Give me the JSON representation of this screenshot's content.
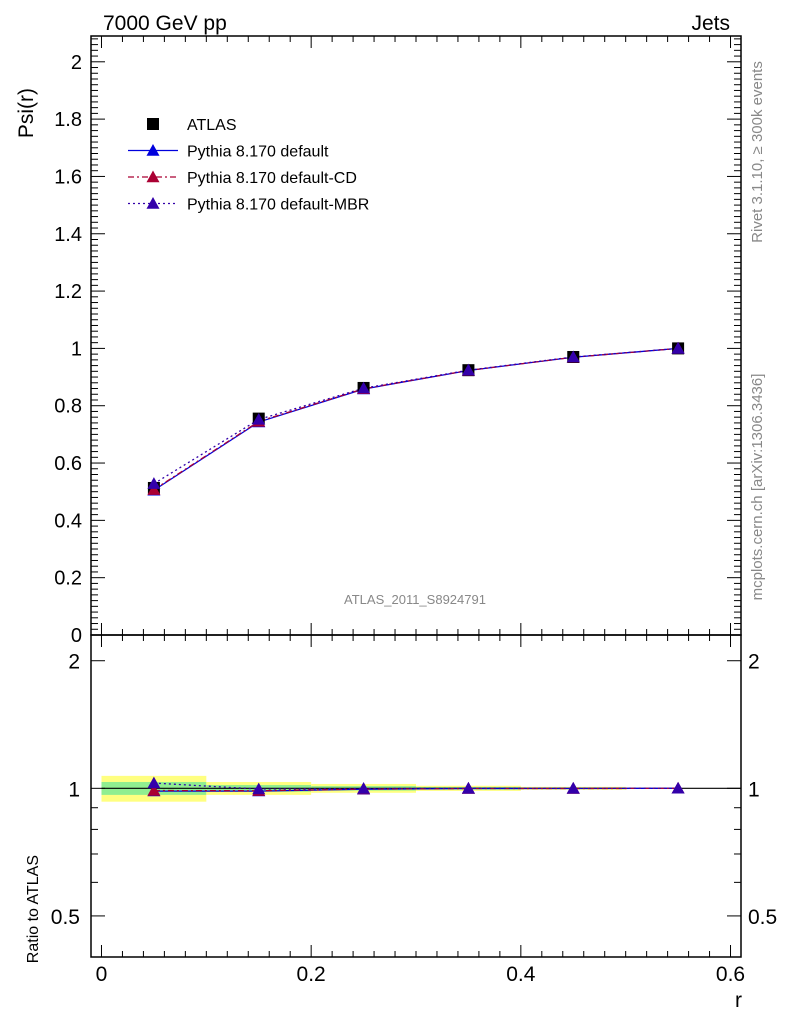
{
  "header": {
    "left_label": "7000 GeV pp",
    "right_label": "Jets",
    "watermark": "ATLAS_2011_S8924791",
    "side_text_top": "Rivet 3.1.10, ≥ 300k events",
    "side_text_bottom": "mcplots.cern.ch [arXiv:1306.3436]"
  },
  "chart_data": [
    {
      "type": "line",
      "ylabel": "Psi(r)",
      "xlabel": "",
      "xlim": [
        -0.01,
        0.61
      ],
      "ylim": [
        0,
        2.09
      ],
      "grid": false,
      "legend_placement": "top-left",
      "x_ticks": [
        "0",
        "0.2",
        "0.4",
        "0.6"
      ],
      "y_ticks": [
        "0",
        "0.2",
        "0.4",
        "0.6",
        "0.8",
        "1",
        "1.2",
        "1.4",
        "1.6",
        "1.8",
        "2"
      ],
      "x": [
        0.05,
        0.15,
        0.25,
        0.35,
        0.45,
        0.55
      ],
      "series": [
        {
          "name": "ATLAS",
          "marker": "square",
          "color": "#000000",
          "values": [
            0.513,
            0.755,
            0.862,
            0.924,
            0.97,
            1.0
          ]
        },
        {
          "name": "Pythia 8.170 default",
          "marker": "triangle",
          "line": "solid",
          "color": "#0000dd",
          "values": [
            0.505,
            0.743,
            0.858,
            0.923,
            0.969,
            1.0
          ]
        },
        {
          "name": "Pythia 8.170 default-CD",
          "marker": "triangle",
          "line": "dashdot",
          "color": "#aa0033",
          "values": [
            0.507,
            0.745,
            0.859,
            0.923,
            0.969,
            1.0
          ]
        },
        {
          "name": "Pythia 8.170 default-MBR",
          "marker": "triangle",
          "line": "dotted",
          "color": "#3300aa",
          "values": [
            0.528,
            0.752,
            0.861,
            0.924,
            0.97,
            1.0
          ]
        }
      ]
    },
    {
      "type": "line",
      "ylabel": "Ratio to ATLAS",
      "xlabel": "r",
      "xlim": [
        -0.01,
        0.61
      ],
      "ylim": [
        0.4,
        2.3
      ],
      "log_y": true,
      "x_ticks": [
        "0",
        "0.2",
        "0.4",
        "0.6"
      ],
      "y_ticks": [
        "0.5",
        "1",
        "2"
      ],
      "x": [
        0.05,
        0.15,
        0.25,
        0.35,
        0.45,
        0.55
      ],
      "bands": {
        "bin_edges": [
          0.0,
          0.1,
          0.2,
          0.3,
          0.4,
          0.5,
          0.6
        ],
        "inner_halfwidth": [
          0.035,
          0.018,
          0.012,
          0.007,
          0.004,
          0.0
        ],
        "outer_halfwidth": [
          0.07,
          0.035,
          0.024,
          0.014,
          0.008,
          0.0
        ],
        "inner_color": "#90ee90",
        "outer_color": "#ffff80"
      },
      "series": [
        {
          "name": "Pythia 8.170 default",
          "color": "#0000dd",
          "values": [
            0.985,
            0.985,
            0.995,
            0.999,
            0.999,
            1.0
          ]
        },
        {
          "name": "Pythia 8.170 default-CD",
          "color": "#aa0033",
          "values": [
            0.988,
            0.987,
            0.996,
            0.999,
            0.999,
            1.0
          ]
        },
        {
          "name": "Pythia 8.170 default-MBR",
          "color": "#3300aa",
          "values": [
            1.029,
            0.996,
            0.999,
            1.0,
            1.0,
            1.0
          ]
        }
      ]
    }
  ]
}
